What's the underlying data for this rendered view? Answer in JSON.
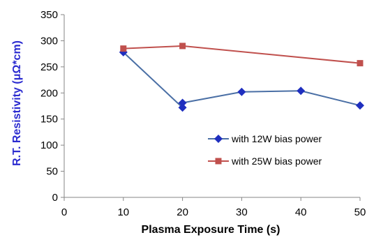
{
  "chart_data": {
    "type": "line",
    "title": "",
    "xlabel": "Plasma Exposure Time (s)",
    "ylabel": "R.T. Resistivity (μΩ*cm)",
    "xlim": [
      0,
      50
    ],
    "ylim": [
      0,
      350
    ],
    "x_ticks": [
      "0",
      "10",
      "20",
      "30",
      "40",
      "50"
    ],
    "y_ticks": [
      "0",
      "50",
      "100",
      "150",
      "200",
      "250",
      "300",
      "350"
    ],
    "grid": false,
    "legend_position": "bottom-right",
    "series": [
      {
        "name": "with 12W bias power",
        "color": "#4A6FA5",
        "marker": "diamond",
        "marker_color": "#1F2FBF",
        "points": [
          [
            10,
            278
          ],
          [
            20,
            172
          ],
          [
            20,
            181
          ],
          [
            30,
            202
          ],
          [
            40,
            204
          ],
          [
            50,
            176
          ]
        ]
      },
      {
        "name": "with 25W bias power",
        "color": "#C0504D",
        "marker": "square",
        "marker_color": "#C0504D",
        "points": [
          [
            10,
            285
          ],
          [
            20,
            290
          ],
          [
            50,
            257
          ]
        ]
      }
    ],
    "ylabel_color": "#2B2BD0",
    "xlabel_color": "#000000"
  }
}
